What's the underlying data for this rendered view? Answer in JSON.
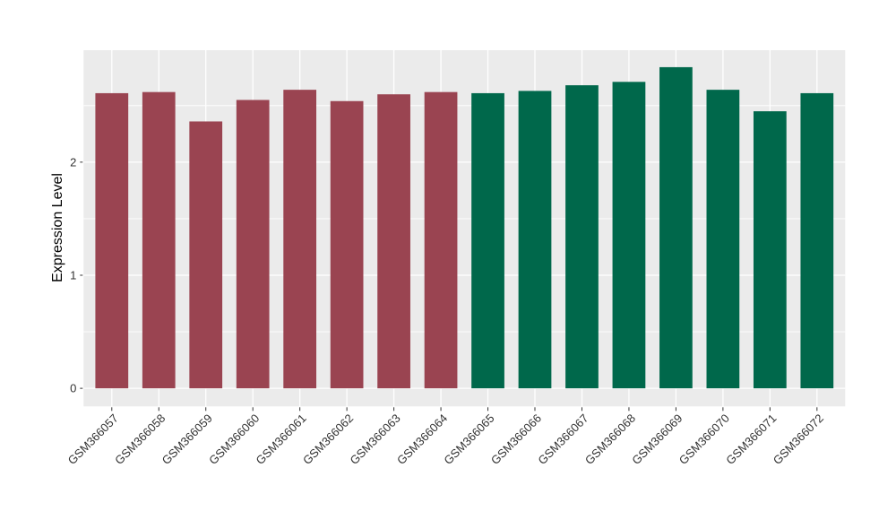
{
  "chart_data": {
    "type": "bar",
    "title": "",
    "xlabel": "",
    "ylabel": "Expression Level",
    "categories": [
      "GSM366057",
      "GSM366058",
      "GSM366059",
      "GSM366060",
      "GSM366061",
      "GSM366062",
      "GSM366063",
      "GSM366064",
      "GSM366065",
      "GSM366066",
      "GSM366067",
      "GSM366068",
      "GSM366069",
      "GSM366070",
      "GSM366071",
      "GSM366072"
    ],
    "values": [
      2.61,
      2.62,
      2.36,
      2.55,
      2.64,
      2.54,
      2.6,
      2.62,
      2.61,
      2.63,
      2.68,
      2.71,
      2.84,
      2.64,
      2.45,
      2.61
    ],
    "groups": [
      1,
      1,
      1,
      1,
      1,
      1,
      1,
      1,
      2,
      2,
      2,
      2,
      2,
      2,
      2,
      2
    ],
    "group_colors": {
      "1": "#9A4451",
      "2": "#00684B"
    },
    "yticks": [
      0,
      1,
      2
    ],
    "yminor_ticks": [
      0.5,
      1.5,
      2.5
    ],
    "ylim": [
      -0.16,
      2.99
    ],
    "grid": true,
    "legend_position": "none",
    "panel_bg": "#EBEBEB",
    "grid_color": "#FFFFFF",
    "tick_color": "#333333"
  }
}
